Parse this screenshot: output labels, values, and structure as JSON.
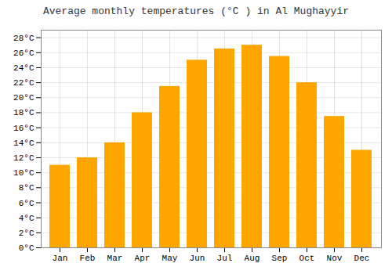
{
  "chart_data": {
    "type": "bar",
    "title": "Average monthly temperatures (°C ) in Al Mughayyir",
    "categories": [
      "Jan",
      "Feb",
      "Mar",
      "Apr",
      "May",
      "Jun",
      "Jul",
      "Aug",
      "Sep",
      "Oct",
      "Nov",
      "Dec"
    ],
    "values": [
      11,
      12,
      14,
      18,
      21.5,
      25,
      26.5,
      27,
      25.5,
      22,
      17.5,
      13
    ],
    "color": "#FFA500",
    "ylim": [
      0,
      29
    ],
    "yticks": [
      {
        "value": 0,
        "label": "0°C"
      },
      {
        "value": 2,
        "label": "2°C"
      },
      {
        "value": 4,
        "label": "4°C"
      },
      {
        "value": 6,
        "label": "6°C"
      },
      {
        "value": 8,
        "label": "8°C"
      },
      {
        "value": 10,
        "label": "10°C"
      },
      {
        "value": 12,
        "label": "12°C"
      },
      {
        "value": 14,
        "label": "14°C"
      },
      {
        "value": 16,
        "label": "16°C"
      },
      {
        "value": 18,
        "label": "18°C"
      },
      {
        "value": 20,
        "label": "20°C"
      },
      {
        "value": 22,
        "label": "22°C"
      },
      {
        "value": 24,
        "label": "24°C"
      },
      {
        "value": 26,
        "label": "26°C"
      },
      {
        "value": 28,
        "label": "28°C"
      }
    ],
    "grid": true
  }
}
